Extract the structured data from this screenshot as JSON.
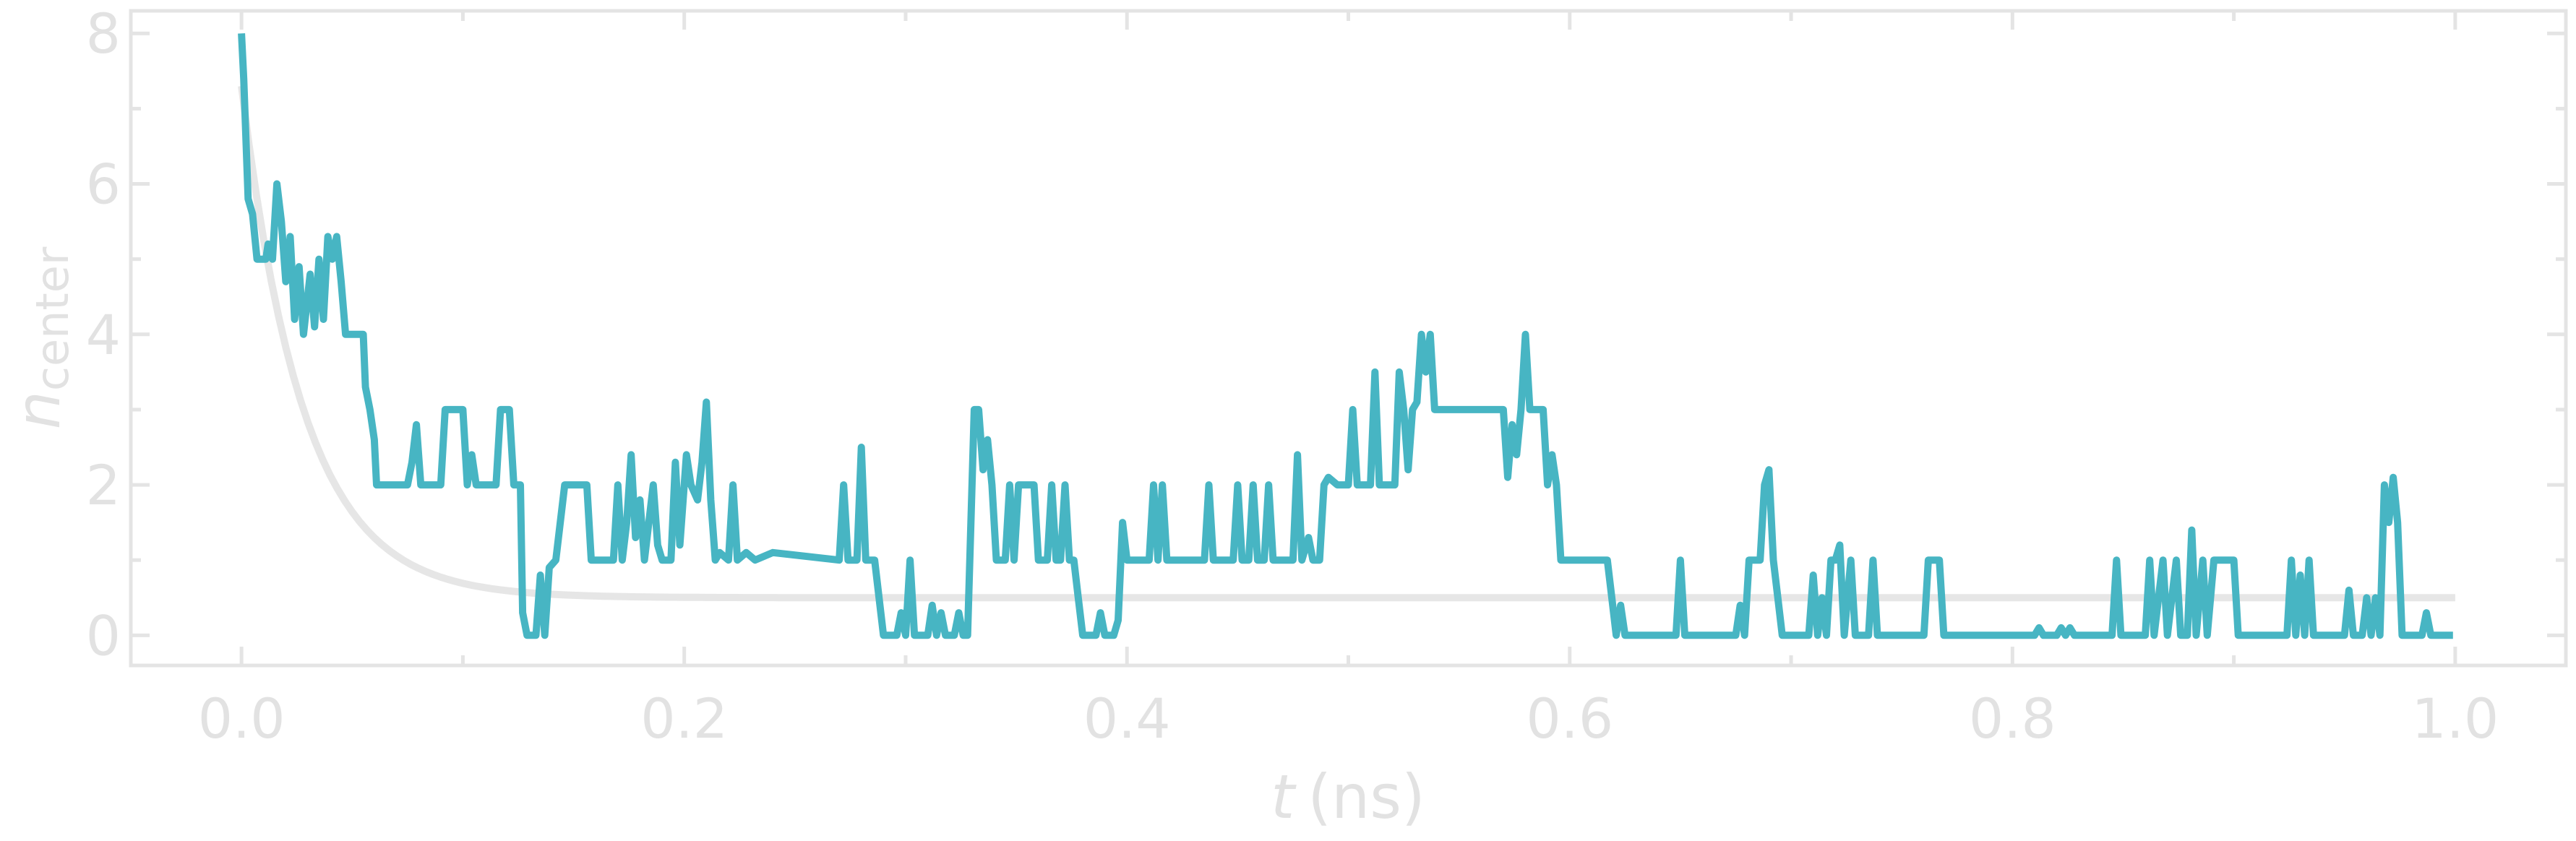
{
  "colors": {
    "axes": "#e4e4e4",
    "trajectory": "#47b5c3",
    "fit": "#e6e6e6"
  },
  "chart_data": {
    "type": "line",
    "title": "",
    "xlabel_var": "t",
    "xlabel_unit": "(ns)",
    "ylabel_var": "n",
    "ylabel_sub": "center",
    "xlim": [
      -0.05,
      1.05
    ],
    "ylim": [
      -0.4,
      8.3
    ],
    "x_ticks": [
      0.0,
      0.2,
      0.4,
      0.6,
      0.8,
      1.0
    ],
    "x_tick_labels": [
      "0.0",
      "0.2",
      "0.4",
      "0.6",
      "0.8",
      "1.0"
    ],
    "y_ticks": [
      0,
      2,
      4,
      6,
      8
    ],
    "y_tick_labels": [
      "0",
      "2",
      "4",
      "6",
      "8"
    ],
    "grid": false,
    "series": [
      {
        "kind": "trajectory",
        "color": "#47b5c3",
        "points": [
          [
            0.0,
            8.0
          ],
          [
            0.001,
            7.4
          ],
          [
            0.003,
            5.8
          ],
          [
            0.005,
            5.6
          ],
          [
            0.007,
            5.0
          ],
          [
            0.011,
            5.0
          ],
          [
            0.012,
            5.2
          ],
          [
            0.014,
            5.0
          ],
          [
            0.016,
            6.0
          ],
          [
            0.018,
            5.5
          ],
          [
            0.02,
            4.7
          ],
          [
            0.022,
            5.3
          ],
          [
            0.024,
            4.2
          ],
          [
            0.026,
            4.9
          ],
          [
            0.028,
            4.0
          ],
          [
            0.031,
            4.8
          ],
          [
            0.033,
            4.1
          ],
          [
            0.035,
            5.0
          ],
          [
            0.037,
            4.2
          ],
          [
            0.039,
            5.3
          ],
          [
            0.041,
            5.0
          ],
          [
            0.043,
            5.3
          ],
          [
            0.045,
            4.7
          ],
          [
            0.047,
            4.0
          ],
          [
            0.05,
            4.0
          ],
          [
            0.055,
            4.0
          ],
          [
            0.056,
            3.3
          ],
          [
            0.058,
            3.0
          ],
          [
            0.06,
            2.6
          ],
          [
            0.061,
            2.0
          ],
          [
            0.075,
            2.0
          ],
          [
            0.077,
            2.3
          ],
          [
            0.079,
            2.8
          ],
          [
            0.081,
            2.0
          ],
          [
            0.09,
            2.0
          ],
          [
            0.092,
            3.0
          ],
          [
            0.1,
            3.0
          ],
          [
            0.102,
            2.0
          ],
          [
            0.104,
            2.4
          ],
          [
            0.106,
            2.0
          ],
          [
            0.115,
            2.0
          ],
          [
            0.117,
            3.0
          ],
          [
            0.121,
            3.0
          ],
          [
            0.123,
            2.0
          ],
          [
            0.126,
            2.0
          ],
          [
            0.127,
            0.3
          ],
          [
            0.129,
            0.0
          ],
          [
            0.133,
            0.0
          ],
          [
            0.135,
            0.8
          ],
          [
            0.137,
            0.0
          ],
          [
            0.139,
            0.9
          ],
          [
            0.142,
            1.0
          ],
          [
            0.146,
            2.0
          ],
          [
            0.156,
            2.0
          ],
          [
            0.158,
            1.0
          ],
          [
            0.168,
            1.0
          ],
          [
            0.17,
            2.0
          ],
          [
            0.172,
            1.0
          ],
          [
            0.174,
            1.5
          ],
          [
            0.176,
            2.4
          ],
          [
            0.178,
            1.3
          ],
          [
            0.18,
            1.8
          ],
          [
            0.182,
            1.0
          ],
          [
            0.184,
            1.5
          ],
          [
            0.186,
            2.0
          ],
          [
            0.188,
            1.2
          ],
          [
            0.19,
            1.0
          ],
          [
            0.194,
            1.0
          ],
          [
            0.196,
            2.3
          ],
          [
            0.198,
            1.2
          ],
          [
            0.201,
            2.4
          ],
          [
            0.203,
            2.0
          ],
          [
            0.206,
            1.8
          ],
          [
            0.208,
            2.3
          ],
          [
            0.21,
            3.1
          ],
          [
            0.212,
            1.8
          ],
          [
            0.214,
            1.0
          ],
          [
            0.216,
            1.1
          ],
          [
            0.22,
            1.0
          ],
          [
            0.222,
            2.0
          ],
          [
            0.224,
            1.0
          ],
          [
            0.228,
            1.1
          ],
          [
            0.232,
            1.0
          ],
          [
            0.24,
            1.1
          ],
          [
            0.27,
            1.0
          ],
          [
            0.272,
            2.0
          ],
          [
            0.274,
            1.0
          ],
          [
            0.278,
            1.0
          ],
          [
            0.28,
            2.5
          ],
          [
            0.282,
            1.0
          ],
          [
            0.286,
            1.0
          ],
          [
            0.288,
            0.5
          ],
          [
            0.29,
            0.0
          ],
          [
            0.296,
            0.0
          ],
          [
            0.298,
            0.3
          ],
          [
            0.3,
            0.0
          ],
          [
            0.302,
            1.0
          ],
          [
            0.304,
            0.0
          ],
          [
            0.31,
            0.0
          ],
          [
            0.312,
            0.4
          ],
          [
            0.314,
            0.0
          ],
          [
            0.316,
            0.3
          ],
          [
            0.318,
            0.0
          ],
          [
            0.322,
            0.0
          ],
          [
            0.324,
            0.3
          ],
          [
            0.326,
            0.0
          ],
          [
            0.328,
            0.0
          ],
          [
            0.331,
            3.0
          ],
          [
            0.333,
            3.0
          ],
          [
            0.335,
            2.2
          ],
          [
            0.337,
            2.6
          ],
          [
            0.339,
            2.0
          ],
          [
            0.341,
            1.0
          ],
          [
            0.345,
            1.0
          ],
          [
            0.347,
            2.0
          ],
          [
            0.349,
            1.0
          ],
          [
            0.351,
            2.0
          ],
          [
            0.358,
            2.0
          ],
          [
            0.36,
            1.0
          ],
          [
            0.364,
            1.0
          ],
          [
            0.366,
            2.0
          ],
          [
            0.368,
            1.0
          ],
          [
            0.37,
            1.0
          ],
          [
            0.372,
            2.0
          ],
          [
            0.374,
            1.0
          ],
          [
            0.376,
            1.0
          ],
          [
            0.378,
            0.5
          ],
          [
            0.38,
            0.0
          ],
          [
            0.386,
            0.0
          ],
          [
            0.388,
            0.3
          ],
          [
            0.39,
            0.0
          ],
          [
            0.394,
            0.0
          ],
          [
            0.396,
            0.2
          ],
          [
            0.398,
            1.5
          ],
          [
            0.4,
            1.0
          ],
          [
            0.41,
            1.0
          ],
          [
            0.412,
            2.0
          ],
          [
            0.414,
            1.0
          ],
          [
            0.416,
            2.0
          ],
          [
            0.418,
            1.0
          ],
          [
            0.42,
            1.0
          ],
          [
            0.435,
            1.0
          ],
          [
            0.437,
            2.0
          ],
          [
            0.439,
            1.0
          ],
          [
            0.448,
            1.0
          ],
          [
            0.45,
            2.0
          ],
          [
            0.452,
            1.0
          ],
          [
            0.455,
            1.0
          ],
          [
            0.457,
            2.0
          ],
          [
            0.459,
            1.0
          ],
          [
            0.462,
            1.0
          ],
          [
            0.464,
            2.0
          ],
          [
            0.466,
            1.0
          ],
          [
            0.47,
            1.0
          ],
          [
            0.475,
            1.0
          ],
          [
            0.477,
            2.4
          ],
          [
            0.479,
            1.0
          ],
          [
            0.482,
            1.3
          ],
          [
            0.484,
            1.0
          ],
          [
            0.487,
            1.0
          ],
          [
            0.489,
            2.0
          ],
          [
            0.491,
            2.1
          ],
          [
            0.495,
            2.0
          ],
          [
            0.5,
            2.0
          ],
          [
            0.502,
            3.0
          ],
          [
            0.504,
            2.0
          ],
          [
            0.508,
            2.0
          ],
          [
            0.51,
            2.0
          ],
          [
            0.512,
            3.5
          ],
          [
            0.514,
            2.0
          ],
          [
            0.52,
            2.0
          ],
          [
            0.521,
            2.0
          ],
          [
            0.523,
            3.5
          ],
          [
            0.525,
            3.0
          ],
          [
            0.527,
            2.2
          ],
          [
            0.529,
            3.0
          ],
          [
            0.531,
            3.1
          ],
          [
            0.533,
            4.0
          ],
          [
            0.535,
            3.5
          ],
          [
            0.537,
            4.0
          ],
          [
            0.539,
            3.0
          ],
          [
            0.541,
            3.0
          ],
          [
            0.549,
            3.0
          ],
          [
            0.57,
            3.0
          ],
          [
            0.572,
            2.1
          ],
          [
            0.574,
            2.8
          ],
          [
            0.576,
            2.4
          ],
          [
            0.578,
            3.0
          ],
          [
            0.58,
            4.0
          ],
          [
            0.582,
            3.0
          ],
          [
            0.588,
            3.0
          ],
          [
            0.59,
            2.0
          ],
          [
            0.592,
            2.4
          ],
          [
            0.594,
            2.0
          ],
          [
            0.596,
            1.0
          ],
          [
            0.605,
            1.0
          ],
          [
            0.617,
            1.0
          ],
          [
            0.619,
            0.5
          ],
          [
            0.621,
            0.0
          ],
          [
            0.623,
            0.4
          ],
          [
            0.625,
            0.0
          ],
          [
            0.648,
            0.0
          ],
          [
            0.65,
            1.0
          ],
          [
            0.652,
            0.0
          ],
          [
            0.675,
            0.0
          ],
          [
            0.677,
            0.4
          ],
          [
            0.679,
            0.0
          ],
          [
            0.681,
            1.0
          ],
          [
            0.686,
            1.0
          ],
          [
            0.688,
            2.0
          ],
          [
            0.69,
            2.2
          ],
          [
            0.692,
            1.0
          ],
          [
            0.694,
            0.5
          ],
          [
            0.696,
            0.0
          ],
          [
            0.708,
            0.0
          ],
          [
            0.71,
            0.8
          ],
          [
            0.712,
            0.0
          ],
          [
            0.714,
            0.5
          ],
          [
            0.716,
            0.0
          ],
          [
            0.718,
            1.0
          ],
          [
            0.72,
            1.0
          ],
          [
            0.722,
            1.2
          ],
          [
            0.724,
            0.0
          ],
          [
            0.727,
            1.0
          ],
          [
            0.729,
            0.0
          ],
          [
            0.735,
            0.0
          ],
          [
            0.737,
            1.0
          ],
          [
            0.739,
            0.0
          ],
          [
            0.76,
            0.0
          ],
          [
            0.762,
            1.0
          ],
          [
            0.767,
            1.0
          ],
          [
            0.769,
            0.0
          ],
          [
            0.81,
            0.0
          ],
          [
            0.812,
            0.1
          ],
          [
            0.814,
            0.0
          ],
          [
            0.82,
            0.0
          ],
          [
            0.822,
            0.1
          ],
          [
            0.824,
            0.0
          ],
          [
            0.826,
            0.1
          ],
          [
            0.828,
            0.0
          ],
          [
            0.845,
            0.0
          ],
          [
            0.847,
            1.0
          ],
          [
            0.849,
            0.0
          ],
          [
            0.86,
            0.0
          ],
          [
            0.862,
            1.0
          ],
          [
            0.864,
            0.0
          ],
          [
            0.868,
            1.0
          ],
          [
            0.87,
            0.0
          ],
          [
            0.874,
            1.0
          ],
          [
            0.876,
            0.0
          ],
          [
            0.879,
            0.0
          ],
          [
            0.881,
            1.4
          ],
          [
            0.883,
            0.0
          ],
          [
            0.886,
            1.0
          ],
          [
            0.888,
            0.0
          ],
          [
            0.891,
            1.0
          ],
          [
            0.9,
            1.0
          ],
          [
            0.902,
            0.0
          ],
          [
            0.924,
            0.0
          ],
          [
            0.926,
            1.0
          ],
          [
            0.928,
            0.0
          ],
          [
            0.93,
            0.8
          ],
          [
            0.932,
            0.0
          ],
          [
            0.934,
            1.0
          ],
          [
            0.936,
            0.0
          ],
          [
            0.95,
            0.0
          ],
          [
            0.952,
            0.6
          ],
          [
            0.954,
            0.0
          ],
          [
            0.958,
            0.0
          ],
          [
            0.96,
            0.5
          ],
          [
            0.962,
            0.0
          ],
          [
            0.964,
            0.5
          ],
          [
            0.966,
            0.0
          ],
          [
            0.968,
            2.0
          ],
          [
            0.97,
            1.5
          ],
          [
            0.972,
            2.1
          ],
          [
            0.974,
            1.5
          ],
          [
            0.976,
            0.0
          ],
          [
            0.985,
            0.0
          ],
          [
            0.987,
            0.3
          ],
          [
            0.989,
            0.0
          ],
          [
            0.999,
            0.0
          ]
        ]
      },
      {
        "kind": "exponential_fit",
        "color": "#e6e6e6",
        "equation": "y = 0.5 + 6.8 * exp(-t / 0.028)",
        "y_offset": 0.5,
        "amplitude": 6.8,
        "tau": 0.028,
        "x_range": [
          0.0,
          1.0
        ]
      }
    ]
  }
}
